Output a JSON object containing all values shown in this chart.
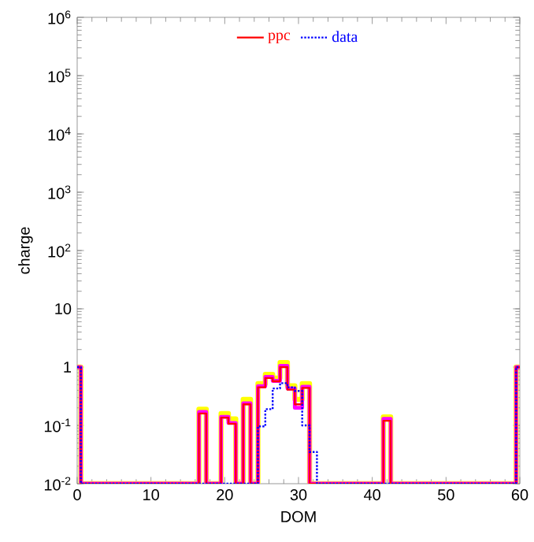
{
  "chart_data": {
    "type": "step",
    "xlabel": "DOM",
    "ylabel": "charge",
    "xlim": [
      0,
      60
    ],
    "xticks": [
      0,
      10,
      20,
      30,
      40,
      50,
      60
    ],
    "ylim": [
      0.01,
      1000000
    ],
    "log": true,
    "yticks": [
      {
        "value": 0.01,
        "label": "10$^{-2}$"
      },
      {
        "value": 0.1,
        "label": "10$^{-1}$"
      },
      1,
      10,
      {
        "value": 100,
        "label": "10$^{2}$"
      },
      {
        "value": 1000,
        "label": "10$^{3}$"
      },
      {
        "value": 10000,
        "label": "10$^{4}$"
      },
      {
        "value": 100000,
        "label": "10$^{5}$"
      },
      {
        "value": 1000000,
        "label": "10$^{6}$"
      }
    ],
    "legend": "top",
    "grid": false,
    "series": [
      {
        "color": "#ffff00",
        "x": [
          0,
          1,
          16,
          17,
          18,
          19,
          20,
          21,
          22,
          23,
          24,
          25,
          26,
          27,
          28,
          29,
          30,
          31,
          32,
          41,
          42,
          43,
          59,
          60
        ],
        "values": [
          1,
          0.01,
          0.01,
          0.19,
          0.01,
          0.01,
          0.16,
          0.13,
          0.01,
          0.28,
          0.01,
          0.52,
          0.75,
          0.65,
          1.2,
          0.48,
          0.28,
          0.52,
          0.01,
          0.01,
          0.14,
          0.01,
          0.01,
          1
        ]
      },
      {
        "color": "#ff00ff",
        "x": [
          0,
          1,
          16,
          17,
          18,
          19,
          20,
          21,
          22,
          23,
          24,
          25,
          26,
          27,
          28,
          29,
          30,
          31,
          32,
          41,
          42,
          43,
          59,
          60
        ],
        "values": [
          1,
          0.01,
          0.01,
          0.17,
          0.01,
          0.01,
          0.14,
          0.11,
          0.01,
          0.24,
          0.01,
          0.47,
          0.68,
          0.58,
          1.05,
          0.43,
          0.2,
          0.46,
          0.01,
          0.01,
          0.13,
          0.01,
          0.01,
          1
        ]
      },
      {
        "name": "ppc",
        "color": "#ff0000",
        "x": [
          0,
          1,
          16,
          17,
          18,
          19,
          20,
          21,
          22,
          23,
          24,
          25,
          26,
          27,
          28,
          29,
          30,
          31,
          32,
          41,
          42,
          43,
          59,
          60
        ],
        "values": [
          1,
          0.01,
          0.01,
          0.16,
          0.01,
          0.01,
          0.136,
          0.107,
          0.01,
          0.23,
          0.01,
          0.45,
          0.65,
          0.57,
          1.0,
          0.41,
          0.23,
          0.44,
          0.01,
          0.01,
          0.12,
          0.01,
          0.01,
          1
        ]
      },
      {
        "name": "data",
        "color": "#0000ff",
        "line_style": "dotted",
        "x": [
          0,
          1,
          24,
          25,
          26,
          27,
          28,
          29,
          30,
          31,
          32,
          33,
          59,
          60
        ],
        "values": [
          1,
          0.01,
          0.01,
          0.096,
          0.19,
          0.43,
          0.53,
          0.45,
          0.39,
          0.1,
          0.035,
          0.01,
          0.01,
          1
        ]
      }
    ]
  }
}
